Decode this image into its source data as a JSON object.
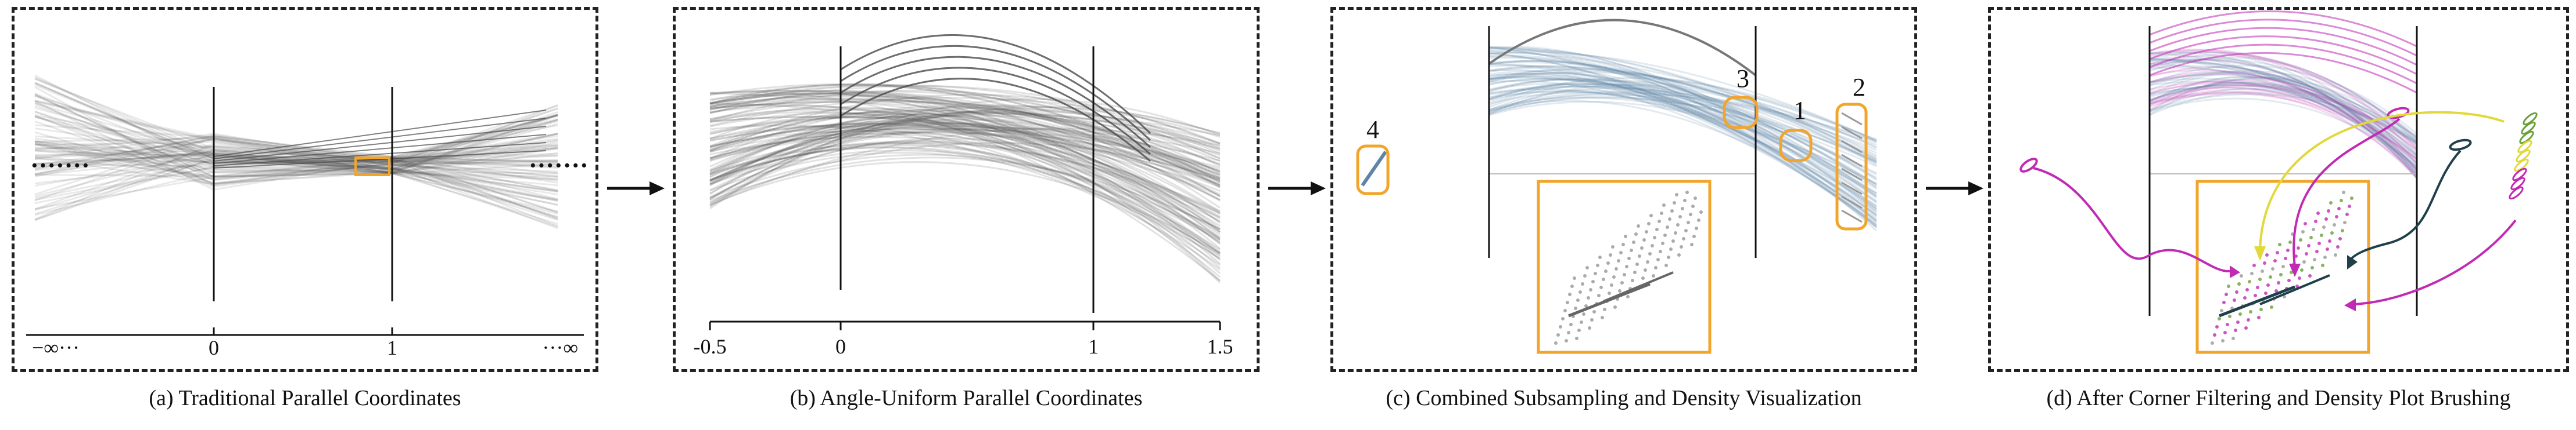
{
  "colors": {
    "line_gray": "#4a4a4a",
    "highlight_orange": "#f2a52a",
    "density_blue": "#5f84a8",
    "brush_magenta": "#c02ab4",
    "brush_yellow": "#e2d83a",
    "brush_green": "#6aa03a",
    "brush_darkteal": "#1f3f4a"
  },
  "panels": [
    {
      "id": "a",
      "caption": "(a) Traditional Parallel Coordinates",
      "axis_ticks": [
        "−∞···",
        "0",
        "1",
        "···∞"
      ],
      "ellipsis": [
        "·······",
        "·······"
      ]
    },
    {
      "id": "b",
      "caption": "(b) Angle-Uniform Parallel Coordinates",
      "axis_ticks": [
        "-0.5",
        "0",
        "1",
        "1.5"
      ]
    },
    {
      "id": "c",
      "caption": "(c) Combined Subsampling and Density Visualization",
      "markers": [
        "4",
        "3",
        "1",
        "2"
      ]
    },
    {
      "id": "d",
      "caption": "(d) After Corner Filtering and Density Plot Brushing"
    }
  ]
}
